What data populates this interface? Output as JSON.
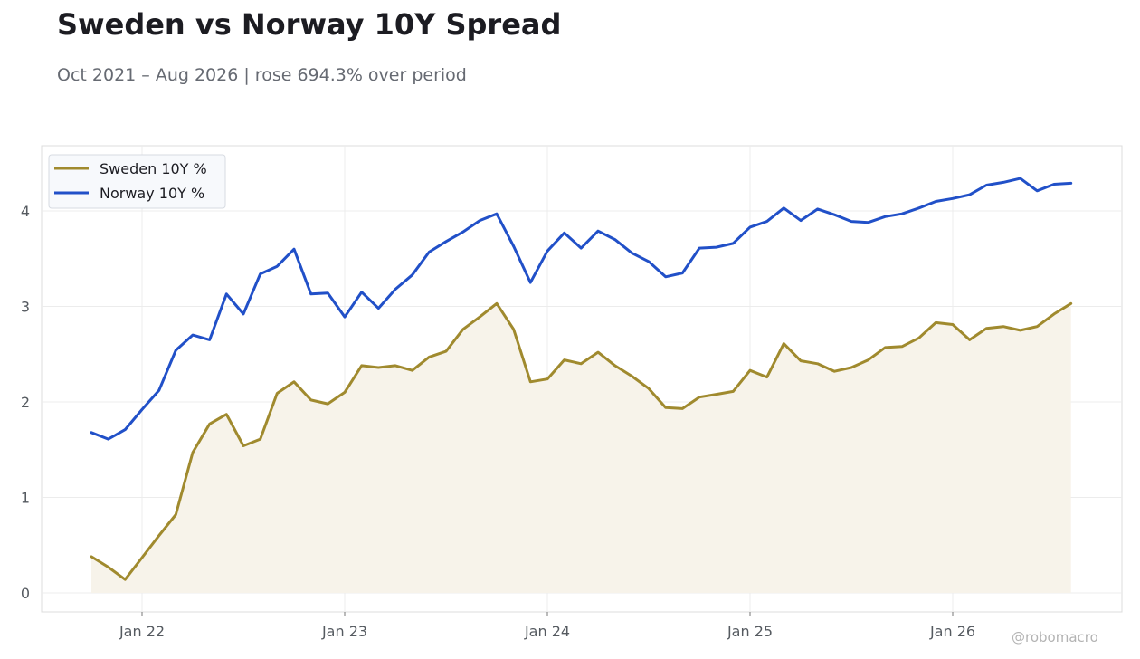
{
  "header": {
    "title": "Sweden vs Norway 10Y Spread",
    "subtitle": "Oct 2021 – Aug 2026 | rose 694.3% over period"
  },
  "watermark": "@robomacro",
  "chart_data": {
    "type": "line",
    "title": "Sweden vs Norway 10Y Spread",
    "subtitle": "Oct 2021 – Aug 2026 | rose 694.3% over period",
    "xlabel": "",
    "ylabel": "",
    "x_start": "2021-10",
    "x_end": "2026-08",
    "x_ticks": [
      "Jan 22",
      "Jan 23",
      "Jan 24",
      "Jan 25",
      "Jan 26"
    ],
    "y_ticks": [
      0,
      1,
      2,
      3,
      4
    ],
    "ylim": [
      -0.2,
      4.65
    ],
    "grid": true,
    "legend_position": "top-left",
    "x": [
      "2021-10",
      "2021-11",
      "2021-12",
      "2022-01",
      "2022-02",
      "2022-03",
      "2022-04",
      "2022-05",
      "2022-06",
      "2022-07",
      "2022-08",
      "2022-09",
      "2022-10",
      "2022-11",
      "2022-12",
      "2023-01",
      "2023-02",
      "2023-03",
      "2023-04",
      "2023-05",
      "2023-06",
      "2023-07",
      "2023-08",
      "2023-09",
      "2023-10",
      "2023-11",
      "2023-12",
      "2024-01",
      "2024-02",
      "2024-03",
      "2024-04",
      "2024-05",
      "2024-06",
      "2024-07",
      "2024-08",
      "2024-09",
      "2024-10",
      "2024-11",
      "2024-12",
      "2025-01",
      "2025-02",
      "2025-03",
      "2025-04",
      "2025-05",
      "2025-06",
      "2025-07",
      "2025-08",
      "2025-09",
      "2025-10",
      "2025-11",
      "2025-12",
      "2026-01",
      "2026-02",
      "2026-03",
      "2026-04",
      "2026-05",
      "2026-06",
      "2026-07",
      "2026-08"
    ],
    "series": [
      {
        "name": "Sweden 10Y %",
        "color": "#a08a2e",
        "fill": "#f7f3ea",
        "values": [
          0.38,
          0.27,
          0.14,
          0.37,
          0.6,
          0.82,
          1.47,
          1.77,
          1.87,
          1.54,
          1.61,
          2.09,
          2.21,
          2.02,
          1.98,
          2.1,
          2.38,
          2.36,
          2.38,
          2.33,
          2.47,
          2.53,
          2.76,
          2.89,
          3.03,
          2.76,
          2.21,
          2.24,
          2.44,
          2.4,
          2.52,
          2.38,
          2.27,
          2.14,
          1.94,
          1.93,
          2.05,
          2.08,
          2.11,
          2.33,
          2.26,
          2.61,
          2.43,
          2.4,
          2.32,
          2.36,
          2.44,
          2.57,
          2.58,
          2.67,
          2.83,
          2.81,
          2.65,
          2.77,
          2.79,
          2.75,
          2.79,
          2.92,
          3.03
        ]
      },
      {
        "name": "Norway 10Y %",
        "color": "#2150c8",
        "values": [
          1.68,
          1.61,
          1.71,
          1.92,
          2.12,
          2.54,
          2.7,
          2.65,
          3.13,
          2.92,
          3.34,
          3.42,
          3.6,
          3.13,
          3.14,
          2.89,
          3.15,
          2.98,
          3.18,
          3.33,
          3.57,
          3.68,
          3.78,
          3.9,
          3.97,
          3.63,
          3.25,
          3.58,
          3.77,
          3.61,
          3.79,
          3.7,
          3.56,
          3.47,
          3.31,
          3.35,
          3.61,
          3.62,
          3.66,
          3.83,
          3.89,
          4.03,
          3.9,
          4.02,
          3.96,
          3.89,
          3.88,
          3.94,
          3.97,
          4.03,
          4.1,
          4.13,
          4.17,
          4.27,
          4.3,
          4.34,
          4.21,
          4.28,
          4.29
        ]
      }
    ]
  }
}
